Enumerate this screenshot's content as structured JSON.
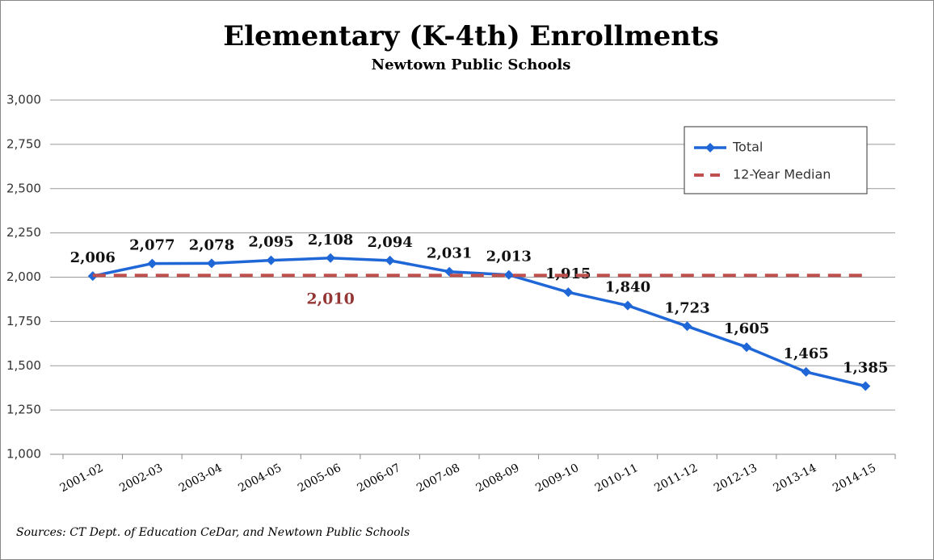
{
  "chart_data": {
    "type": "line",
    "title": "Elementary (K-4th) Enrollments",
    "subtitle": "Newtown Public Schools",
    "source": "Sources:  CT Dept. of Education CeDar, and Newtown Public Schools",
    "categories": [
      "2001-02",
      "2002-03",
      "2003-04",
      "2004-05",
      "2005-06",
      "2006-07",
      "2007-08",
      "2008-09",
      "2009-10",
      "2010-11",
      "2011-12",
      "2012-13",
      "2013-14",
      "2014-15"
    ],
    "series": [
      {
        "name": "Total",
        "color": "#1f66d6",
        "marker": "diamond",
        "values": [
          2006,
          2077,
          2078,
          2095,
          2108,
          2094,
          2031,
          2013,
          1915,
          1840,
          1723,
          1605,
          1465,
          1385
        ],
        "value_labels": [
          "2,006",
          "2,077",
          "2,078",
          "2,095",
          "2,108",
          "2,094",
          "2,031",
          "2,013",
          "1,915",
          "1,840",
          "1,723",
          "1,605",
          "1,465",
          "1,385"
        ]
      },
      {
        "name": "12-Year Median",
        "color": "#c0504d",
        "dashed": true,
        "values": [
          2010,
          2010,
          2010,
          2010,
          2010,
          2010,
          2010,
          2010,
          2010,
          2010,
          2010,
          2010,
          2010,
          2010
        ],
        "value_labels": [
          null,
          null,
          null,
          null,
          "2,010",
          null,
          null,
          null,
          null,
          null,
          null,
          null,
          null,
          null
        ]
      }
    ],
    "ylim": [
      1000,
      3000
    ],
    "yticks": [
      {
        "value": 1000,
        "label": "1,000"
      },
      {
        "value": 1250,
        "label": "1,250"
      },
      {
        "value": 1500,
        "label": "1,500"
      },
      {
        "value": 1750,
        "label": "1,750"
      },
      {
        "value": 2000,
        "label": "2,000"
      },
      {
        "value": 2250,
        "label": "2,250"
      },
      {
        "value": 2500,
        "label": "2,500"
      },
      {
        "value": 2750,
        "label": "2,750"
      },
      {
        "value": 3000,
        "label": "3,000"
      }
    ],
    "grid": true,
    "legend": "top-right"
  }
}
